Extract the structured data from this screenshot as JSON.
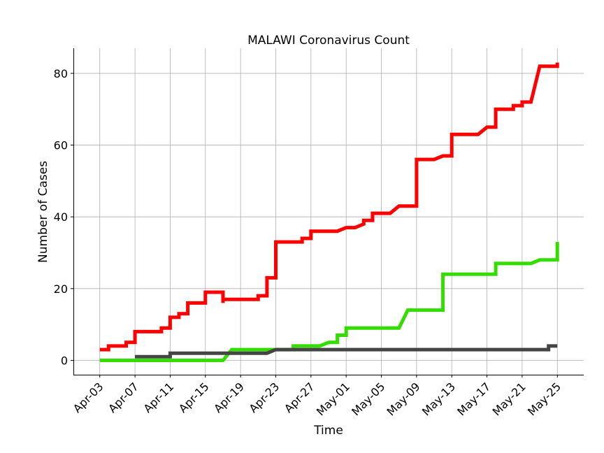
{
  "chart_data": {
    "type": "line",
    "title": "MALAWI Coronavirus Count",
    "xlabel": "Time",
    "ylabel": "Number of Cases",
    "ylim": [
      -4,
      87
    ],
    "xlim": [
      "2020-03-31",
      "2020-05-28"
    ],
    "yticks": [
      0,
      20,
      40,
      60,
      80
    ],
    "xticks": [
      "2020-04-03",
      "2020-04-07",
      "2020-04-11",
      "2020-04-15",
      "2020-04-19",
      "2020-04-23",
      "2020-04-27",
      "2020-05-01",
      "2020-05-05",
      "2020-05-09",
      "2020-05-13",
      "2020-05-17",
      "2020-05-21",
      "2020-05-25"
    ],
    "xtick_labels": [
      "Apr-03",
      "Apr-07",
      "Apr-11",
      "Apr-15",
      "Apr-19",
      "Apr-23",
      "Apr-27",
      "May-01",
      "May-05",
      "May-09",
      "May-13",
      "May-17",
      "May-21",
      "May-25"
    ],
    "grid": true,
    "series": [
      {
        "color": "#ff0000",
        "points": [
          [
            "2020-04-03",
            3
          ],
          [
            "2020-04-04",
            3
          ],
          [
            "2020-04-04",
            4
          ],
          [
            "2020-04-06",
            4
          ],
          [
            "2020-04-06",
            5
          ],
          [
            "2020-04-07",
            5
          ],
          [
            "2020-04-07",
            8
          ],
          [
            "2020-04-10",
            8
          ],
          [
            "2020-04-10",
            9
          ],
          [
            "2020-04-11",
            9
          ],
          [
            "2020-04-11",
            12
          ],
          [
            "2020-04-12",
            12
          ],
          [
            "2020-04-12",
            13
          ],
          [
            "2020-04-13",
            13
          ],
          [
            "2020-04-13",
            16
          ],
          [
            "2020-04-15",
            16
          ],
          [
            "2020-04-15",
            19
          ],
          [
            "2020-04-17",
            19
          ],
          [
            "2020-04-17",
            16
          ],
          [
            "2020-04-17",
            17
          ],
          [
            "2020-04-21",
            17
          ],
          [
            "2020-04-21",
            18
          ],
          [
            "2020-04-22",
            18
          ],
          [
            "2020-04-22",
            23
          ],
          [
            "2020-04-23",
            23
          ],
          [
            "2020-04-23",
            33
          ],
          [
            "2020-04-26",
            33
          ],
          [
            "2020-04-26",
            34
          ],
          [
            "2020-04-27",
            34
          ],
          [
            "2020-04-27",
            36
          ],
          [
            "2020-04-30",
            36
          ],
          [
            "2020-05-01",
            37
          ],
          [
            "2020-05-02",
            37
          ],
          [
            "2020-05-03",
            38
          ],
          [
            "2020-05-03",
            39
          ],
          [
            "2020-05-04",
            39
          ],
          [
            "2020-05-04",
            41
          ],
          [
            "2020-05-06",
            41
          ],
          [
            "2020-05-07",
            43
          ],
          [
            "2020-05-09",
            43
          ],
          [
            "2020-05-09",
            56
          ],
          [
            "2020-05-11",
            56
          ],
          [
            "2020-05-12",
            57
          ],
          [
            "2020-05-13",
            57
          ],
          [
            "2020-05-13",
            63
          ],
          [
            "2020-05-16",
            63
          ],
          [
            "2020-05-17",
            65
          ],
          [
            "2020-05-18",
            65
          ],
          [
            "2020-05-18",
            70
          ],
          [
            "2020-05-20",
            70
          ],
          [
            "2020-05-20",
            71
          ],
          [
            "2020-05-21",
            71
          ],
          [
            "2020-05-21",
            72
          ],
          [
            "2020-05-22",
            72
          ],
          [
            "2020-05-23",
            82
          ],
          [
            "2020-05-25",
            82
          ],
          [
            "2020-05-25",
            83
          ]
        ]
      },
      {
        "color": "#33dd00",
        "points": [
          [
            "2020-04-03",
            0
          ],
          [
            "2020-04-17",
            0
          ],
          [
            "2020-04-18",
            3
          ],
          [
            "2020-04-25",
            3
          ],
          [
            "2020-04-25",
            4
          ],
          [
            "2020-04-28",
            4
          ],
          [
            "2020-04-29",
            5
          ],
          [
            "2020-04-30",
            5
          ],
          [
            "2020-04-30",
            7
          ],
          [
            "2020-05-01",
            7
          ],
          [
            "2020-05-01",
            9
          ],
          [
            "2020-05-07",
            9
          ],
          [
            "2020-05-08",
            14
          ],
          [
            "2020-05-12",
            14
          ],
          [
            "2020-05-12",
            24
          ],
          [
            "2020-05-18",
            24
          ],
          [
            "2020-05-18",
            27
          ],
          [
            "2020-05-22",
            27
          ],
          [
            "2020-05-23",
            28
          ],
          [
            "2020-05-25",
            28
          ],
          [
            "2020-05-25",
            33
          ]
        ]
      },
      {
        "color": "#444444",
        "points": [
          [
            "2020-04-07",
            1
          ],
          [
            "2020-04-11",
            1
          ],
          [
            "2020-04-11",
            2
          ],
          [
            "2020-04-21",
            2
          ],
          [
            "2020-04-22",
            2
          ],
          [
            "2020-04-23",
            3
          ],
          [
            "2020-05-24",
            3
          ],
          [
            "2020-05-24",
            4
          ],
          [
            "2020-05-25",
            4
          ]
        ]
      }
    ]
  }
}
